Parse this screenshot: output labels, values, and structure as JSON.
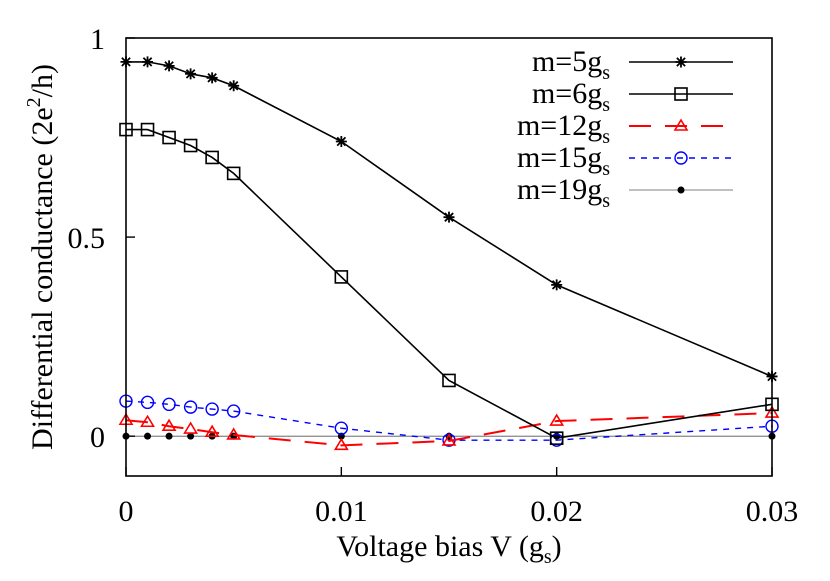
{
  "chart_data": {
    "type": "line",
    "title": "",
    "xlabel": "Voltage bias V (g_s)",
    "ylabel": "Differential conductance (2e^2/h)",
    "xlim": [
      0,
      0.03
    ],
    "ylim": [
      -0.1,
      1.0
    ],
    "xticks": [
      0,
      0.01,
      0.02,
      0.03
    ],
    "xtick_labels": [
      "0",
      "0.01",
      "0.02",
      "0.03"
    ],
    "yticks": [
      0,
      0.5,
      1
    ],
    "ytick_labels": [
      "0",
      "0.5",
      "1"
    ],
    "grid": false,
    "legend_position": "upper right",
    "x": [
      0,
      0.001,
      0.002,
      0.003,
      0.004,
      0.005,
      0.01,
      0.015,
      0.02,
      0.03
    ],
    "series": [
      {
        "name": "m=5g_s",
        "label_main": "m=5g",
        "label_sub": "s",
        "color": "#000000",
        "dash": "none",
        "marker": "star",
        "width": 1.6,
        "values": [
          0.94,
          0.94,
          0.93,
          0.91,
          0.9,
          0.88,
          0.74,
          0.55,
          0.38,
          0.15
        ]
      },
      {
        "name": "m=6g_s",
        "label_main": "m=6g",
        "label_sub": "s",
        "color": "#000000",
        "dash": "none",
        "marker": "square",
        "width": 1.6,
        "values": [
          0.77,
          0.77,
          0.75,
          0.73,
          0.7,
          0.66,
          0.4,
          0.14,
          -0.005,
          0.08
        ]
      },
      {
        "name": "m=12g_s",
        "label_main": "m=12g",
        "label_sub": "s",
        "color": "#ff0000",
        "dash": "22 14",
        "marker": "triangle",
        "width": 2,
        "values": [
          0.04,
          0.035,
          0.025,
          0.018,
          0.01,
          0.003,
          -0.023,
          -0.012,
          0.038,
          0.058
        ]
      },
      {
        "name": "m=15g_s",
        "label_main": "m=15g",
        "label_sub": "s",
        "color": "#0000ff",
        "dash": "6 6",
        "marker": "circle",
        "width": 1.4,
        "values": [
          0.088,
          0.085,
          0.08,
          0.073,
          0.068,
          0.063,
          0.02,
          -0.01,
          -0.01,
          0.025
        ]
      },
      {
        "name": "m=19g_s",
        "label_main": "m=19g",
        "label_sub": "s",
        "color": "#000000",
        "dash": "none",
        "marker": "dot",
        "width": 0.8,
        "values": [
          0,
          0,
          0,
          0,
          0,
          0,
          0,
          0,
          0,
          0
        ]
      }
    ]
  },
  "axes": {
    "xlabel_main": "Voltage bias V (g",
    "xlabel_sub": "s",
    "xlabel_end": ")",
    "ylabel_main": "Differential conductance (2e",
    "ylabel_sup": "2",
    "ylabel_end": "/h)"
  }
}
